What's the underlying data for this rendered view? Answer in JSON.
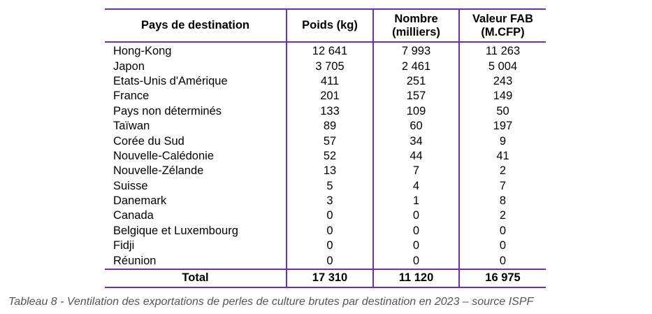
{
  "table": {
    "headers": [
      "Pays de destination",
      "Poids (kg)",
      "Nombre\n(milliers)",
      "Valeur FAB\n(M.CFP)"
    ],
    "rows": [
      [
        "Hong-Kong",
        "12 641",
        "7 993",
        "11 263"
      ],
      [
        "Japon",
        "3 705",
        "2 461",
        "5 004"
      ],
      [
        "Etats-Unis d'Amérique",
        "411",
        "251",
        "243"
      ],
      [
        "France",
        "201",
        "157",
        "149"
      ],
      [
        "Pays non déterminés",
        "133",
        "109",
        "50"
      ],
      [
        "Taïwan",
        "89",
        "60",
        "197"
      ],
      [
        "Corée du Sud",
        "57",
        "34",
        "9"
      ],
      [
        "Nouvelle-Calédonie",
        "52",
        "44",
        "41"
      ],
      [
        "Nouvelle-Zélande",
        "13",
        "7",
        "2"
      ],
      [
        "Suisse",
        "5",
        "4",
        "7"
      ],
      [
        "Danemark",
        "3",
        "1",
        "8"
      ],
      [
        "Canada",
        "0",
        "0",
        "2"
      ],
      [
        "Belgique et Luxembourg",
        "0",
        "0",
        "0"
      ],
      [
        "Fidji",
        "0",
        "0",
        "0"
      ],
      [
        "Réunion",
        "0",
        "0",
        "0"
      ]
    ],
    "total": [
      "Total",
      "17 310",
      "11 120",
      "16 975"
    ]
  },
  "caption": "Tableau 8 - Ventilation des exportations de perles de culture brutes par destination en 2023 – source ISPF",
  "colors": {
    "rule": "#7030a0",
    "caption_text": "#555555"
  }
}
